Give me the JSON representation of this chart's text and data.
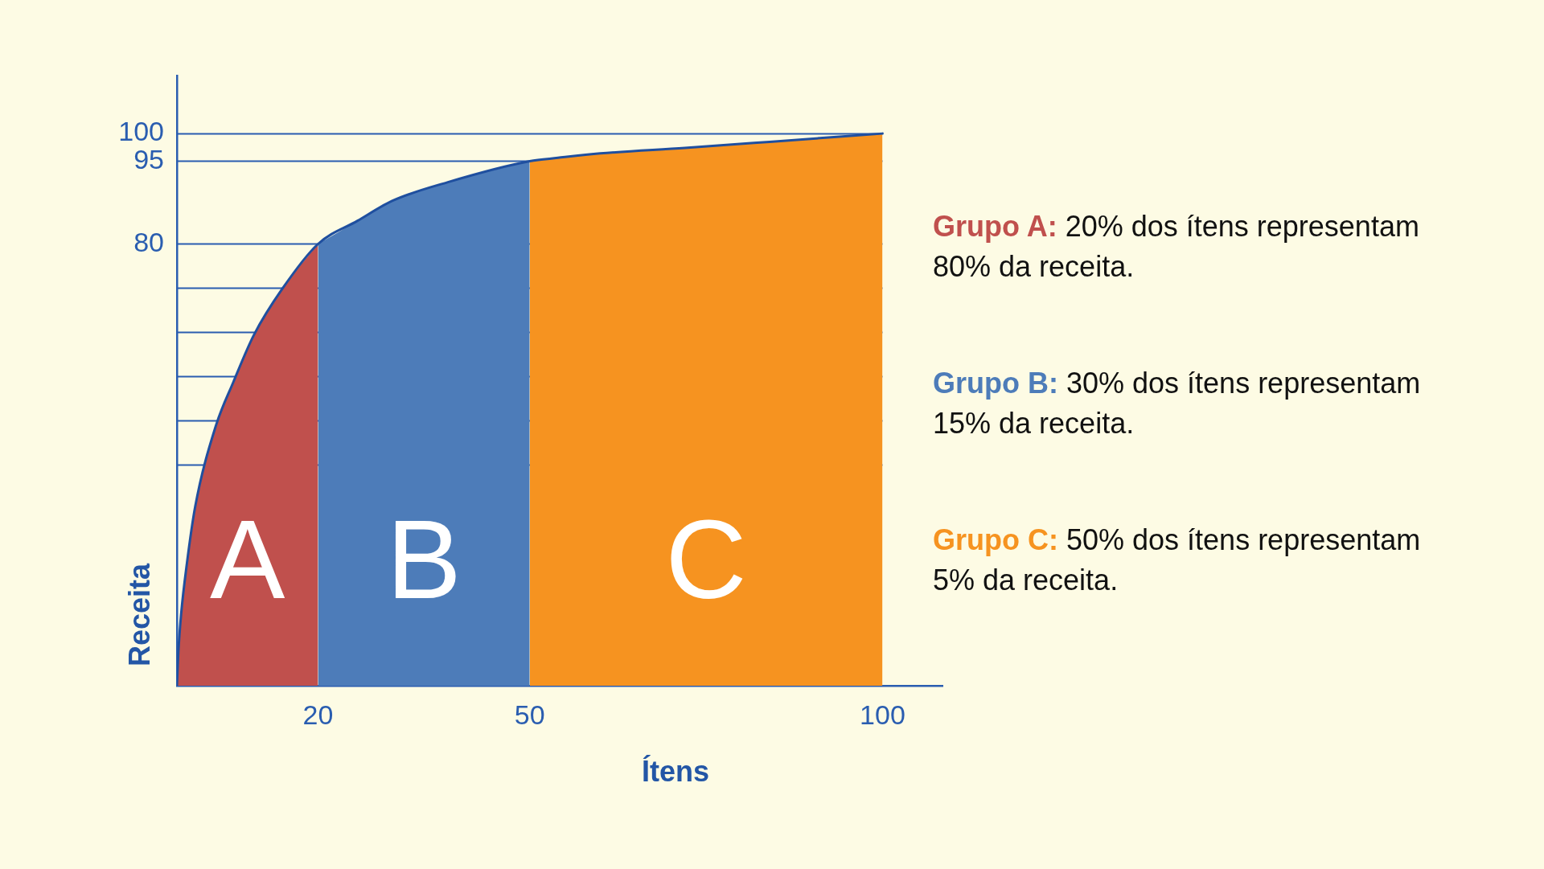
{
  "chart_data": {
    "type": "area",
    "xlabel": "Ítens",
    "ylabel": "Receita",
    "xlim": [
      0,
      108.5
    ],
    "xticks": [
      20,
      50,
      100
    ],
    "ylim": [
      0,
      110.5
    ],
    "yticks": [
      100,
      95,
      80,
      {
        "value": 72,
        "label": null
      },
      {
        "value": 64,
        "label": null
      },
      {
        "value": 56,
        "label": null
      },
      {
        "value": 48,
        "label": null
      },
      {
        "value": 40,
        "label": null
      }
    ],
    "grid": "y",
    "series": [
      {
        "name": "A",
        "color": "#c0504d",
        "x": [
          0,
          0.2,
          0.6,
          1.4,
          2.6,
          5.5,
          8,
          10.9,
          15,
          20
        ],
        "values": [
          0,
          6,
          13,
          22,
          32.5,
          47,
          55,
          63.5,
          72,
          80
        ]
      },
      {
        "name": "B",
        "color": "#4d7cb9",
        "x": [
          20,
          25.6,
          30.5,
          38.4,
          50
        ],
        "values": [
          80,
          84.2,
          87.8,
          91.2,
          95
        ]
      },
      {
        "name": "C",
        "color": "#f69320",
        "x": [
          50,
          54,
          60,
          72,
          84,
          100
        ],
        "values": [
          95,
          95.6,
          96.4,
          97.4,
          98.5,
          100
        ]
      },
      {
        "type": "line",
        "color": "#1f4f9f",
        "x": [
          0,
          0.2,
          0.6,
          1.4,
          2.6,
          5.5,
          8,
          10.9,
          15,
          20,
          25.6,
          30.5,
          38.4,
          50,
          54,
          60,
          72,
          84,
          100
        ],
        "values": [
          0,
          6,
          13,
          22,
          32.5,
          47,
          55,
          63.5,
          72,
          80,
          84.2,
          87.8,
          91.2,
          95,
          95.6,
          96.4,
          97.4,
          98.5,
          100
        ]
      }
    ],
    "annotations": [
      "Grupo A: 20% dos ítens representam 80% da receita.",
      "Grupo B: 30% dos ítens representam 15% da receita.",
      "Grupo C: 50% dos ítens representam 5% da receita."
    ]
  }
}
